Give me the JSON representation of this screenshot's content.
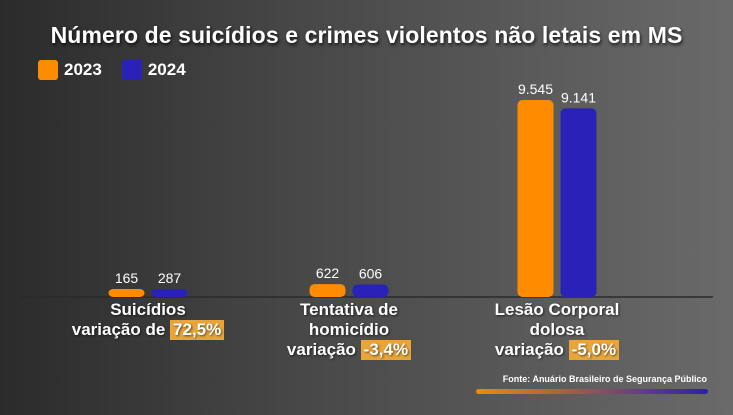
{
  "colors": {
    "2023": "#ff8c00",
    "2024": "#2a22b8"
  },
  "chart_data": {
    "type": "bar",
    "title": "Número de suicídios e crimes violentos não letais em MS",
    "categories": [
      "Suicídios",
      "Tentativa de\nhomicídio",
      "Lesão Corporal\ndolosa"
    ],
    "series": [
      {
        "name": "2023",
        "values": [
          165,
          622,
          9545
        ],
        "labels": [
          "165",
          "622",
          "9.545"
        ]
      },
      {
        "name": "2024",
        "values": [
          287,
          606,
          9141
        ],
        "labels": [
          "287",
          "606",
          "9.141"
        ]
      }
    ],
    "variation_prefix": [
      "variação de",
      "variação",
      "variação"
    ],
    "variation": [
      "72,5%",
      "-3,4%",
      "-5,0%"
    ],
    "legend": "top-left"
  },
  "source": "Fonte: Anuário Brasileiro de Segurança Público"
}
